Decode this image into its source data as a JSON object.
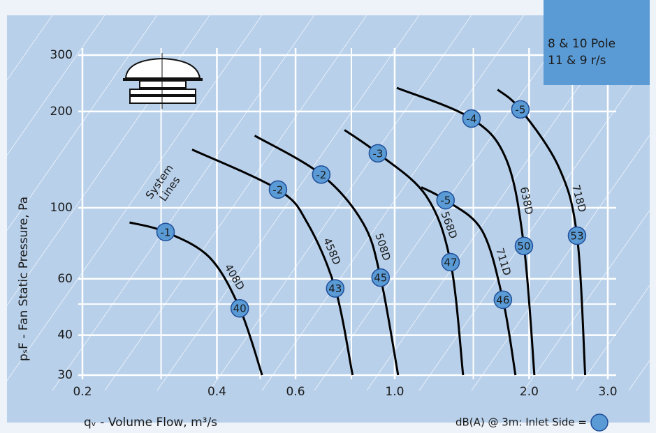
{
  "chart_data": {
    "type": "line",
    "x_scale": "log",
    "y_scale": "log",
    "xlabel": "qᵥ - Volume Flow, m³/s",
    "ylabel": "pₛF - Fan Static Pressure, Pa",
    "xlim": [
      0.2,
      3.0
    ],
    "ylim": [
      30,
      300
    ],
    "xticks": [
      0.2,
      0.4,
      0.6,
      {
        "value": 1,
        "label": "1.0"
      },
      {
        "value": 2,
        "label": "2.0"
      },
      {
        "value": 3,
        "label": "3.0"
      }
    ],
    "yticks": [
      30,
      40,
      60,
      100,
      200,
      300
    ],
    "grid": true,
    "minor_x_grid": [
      0.3,
      0.5,
      0.8,
      1.5,
      2.5
    ],
    "minor_y_grid": [
      50
    ],
    "marker_color": "#5b9bd5",
    "series": [
      {
        "name": "408D",
        "color": "#000000",
        "x": [
          0.255,
          0.307,
          0.385,
          0.45,
          0.505
        ],
        "values": [
          90,
          84,
          70,
          48.5,
          30
        ],
        "db_values": [
          null,
          -1,
          null,
          40,
          null
        ]
      },
      {
        "name": "458D",
        "color": "#000000",
        "x": [
          0.352,
          0.548,
          0.638,
          0.736,
          0.805
        ],
        "values": [
          152,
          114,
          89.5,
          56,
          30
        ],
        "db_values": [
          null,
          -2,
          null,
          43,
          null
        ]
      },
      {
        "name": "508D",
        "color": "#000000",
        "x": [
          0.486,
          0.685,
          0.85,
          0.93,
          1.018
        ],
        "values": [
          168,
          127,
          89.5,
          60.5,
          30
        ],
        "db_values": [
          null,
          -2,
          null,
          45,
          null
        ]
      },
      {
        "name": "568D",
        "color": "#000000",
        "x": [
          0.772,
          0.917,
          1.176,
          1.334,
          1.423
        ],
        "values": [
          175,
          148,
          109,
          67.6,
          30
        ],
        "db_values": [
          null,
          -3,
          null,
          47,
          null
        ]
      },
      {
        "name": "711D",
        "color": "#000000",
        "x": [
          1.147,
          1.3,
          1.568,
          1.747,
          1.864
        ],
        "values": [
          116,
          105.6,
          85,
          51.6,
          30
        ],
        "db_values": [
          null,
          -5,
          null,
          46,
          null
        ]
      },
      {
        "name": "638D",
        "color": "#000000",
        "x": [
          1.011,
          1.486,
          1.78,
          1.947,
          2.055
        ],
        "values": [
          237,
          190,
          141,
          76,
          30
        ],
        "db_values": [
          null,
          -4,
          null,
          50,
          null
        ]
      },
      {
        "name": "718D",
        "color": "#000000",
        "x": [
          1.7,
          1.912,
          2.33,
          2.56,
          2.67
        ],
        "values": [
          234,
          203,
          134,
          81.8,
          30
        ],
        "db_values": [
          null,
          -5,
          null,
          53,
          null
        ]
      }
    ],
    "system_lines_label": [
      "System",
      "Lines"
    ],
    "info_box": [
      "8 & 10 Pole",
      "11 & 9 r/s"
    ],
    "legend_text": "dB(A) @ 3m:  Inlet Side ="
  }
}
